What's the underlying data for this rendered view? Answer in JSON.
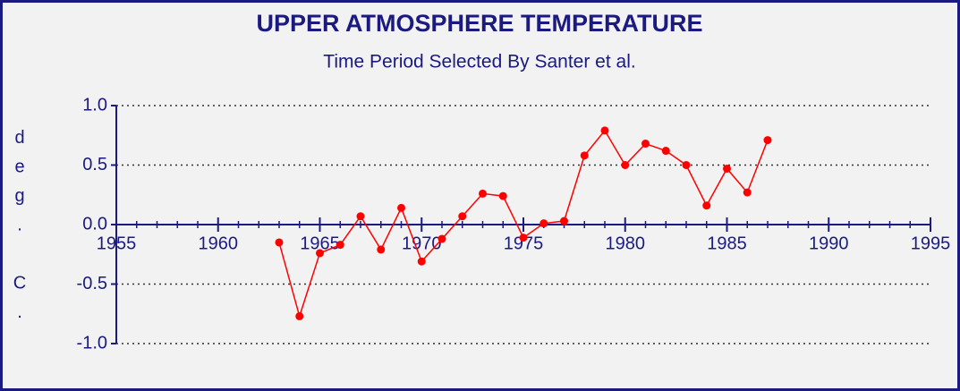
{
  "chart_data": {
    "type": "line",
    "title": "UPPER ATMOSPHERE TEMPERATURE",
    "subtitle": "Time Period Selected By Santer et al.",
    "y_label": "deg. C.",
    "x": [
      1963,
      1964,
      1965,
      1966,
      1967,
      1968,
      1969,
      1970,
      1971,
      1972,
      1973,
      1974,
      1975,
      1976,
      1977,
      1978,
      1979,
      1980,
      1981,
      1982,
      1983,
      1984,
      1985,
      1986,
      1987
    ],
    "series": [
      {
        "color": "#ff0000",
        "values": [
          -0.15,
          -0.77,
          -0.24,
          -0.17,
          0.07,
          -0.21,
          0.14,
          -0.31,
          -0.12,
          0.07,
          0.26,
          0.24,
          -0.11,
          0.01,
          0.03,
          0.58,
          0.79,
          0.5,
          0.68,
          0.62,
          0.5,
          0.16,
          0.47,
          0.27,
          0.71
        ]
      }
    ],
    "xlim": [
      1955,
      1995
    ],
    "xticks": [
      1955,
      1960,
      1965,
      1970,
      1975,
      1980,
      1985,
      1990,
      1995
    ],
    "xminorticks": [
      1956,
      1957,
      1958,
      1959,
      1961,
      1962,
      1963,
      1964,
      1966,
      1967,
      1968,
      1969,
      1971,
      1972,
      1973,
      1974,
      1976,
      1977,
      1978,
      1979,
      1981,
      1982,
      1983,
      1984,
      1986,
      1987,
      1988,
      1989,
      1991,
      1992,
      1993,
      1994
    ],
    "ylim": [
      -1,
      1
    ],
    "yticks": [
      {
        "value": 1,
        "label": "1.0"
      },
      0.5,
      {
        "value": 0,
        "label": "0.0"
      },
      -0.5,
      {
        "value": -1,
        "label": "-1.0"
      }
    ],
    "grid": true
  }
}
